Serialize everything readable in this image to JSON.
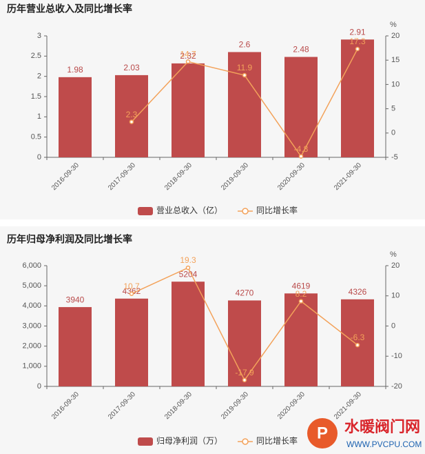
{
  "chart_data": [
    {
      "type": "bar-line",
      "title": "历年营业总收入及同比增长率",
      "categories": [
        "2016-09-30",
        "2017-09-30",
        "2018-09-30",
        "2019-09-30",
        "2020-09-30",
        "2021-09-30"
      ],
      "series": [
        {
          "name": "营业总收入（亿）",
          "color": "#bf4b4b",
          "type": "bar",
          "values": [
            1.98,
            2.03,
            2.32,
            2.6,
            2.48,
            2.91
          ]
        },
        {
          "name": "同比增长率",
          "color": "#f3a25a",
          "type": "line",
          "axis": "y2",
          "values": [
            null,
            2.3,
            14.7,
            11.9,
            -4.8,
            17.3
          ]
        }
      ],
      "ylim": [
        0,
        3
      ],
      "yticks": [
        0,
        0.5,
        1,
        1.5,
        2,
        2.5,
        3
      ],
      "y2label": "%",
      "y2lim": [
        -5,
        20
      ],
      "y2ticks": [
        -5,
        0,
        5,
        10,
        15,
        20
      ]
    },
    {
      "type": "bar-line",
      "title": "历年归母净利润及同比增长率",
      "categories": [
        "2016-09-30",
        "2017-09-30",
        "2018-09-30",
        "2019-09-30",
        "2020-09-30",
        "2021-09-30"
      ],
      "series": [
        {
          "name": "归母净利润（万）",
          "color": "#bf4b4b",
          "type": "bar",
          "values": [
            3940,
            4362,
            5204,
            4270,
            4619,
            4326
          ]
        },
        {
          "name": "同比增长率",
          "color": "#f3a25a",
          "type": "line",
          "axis": "y2",
          "values": [
            null,
            10.7,
            19.3,
            -17.9,
            8.2,
            -6.3
          ]
        }
      ],
      "ylim": [
        0,
        6000
      ],
      "yticks": [
        0,
        {
          "value": 1000,
          "label": "1,000"
        },
        {
          "value": 2000,
          "label": "2,000"
        },
        {
          "value": 3000,
          "label": "3,000"
        },
        {
          "value": 4000,
          "label": "4,000"
        },
        {
          "value": 5000,
          "label": "5,000"
        },
        {
          "value": 6000,
          "label": "6,000"
        }
      ],
      "y2label": "%",
      "y2lim": [
        -20,
        20
      ],
      "y2ticks": [
        -20,
        -10,
        0,
        10,
        20
      ]
    }
  ],
  "watermark": {
    "name": "水暖阀门网",
    "url": "WWW.PVCPU.COM"
  }
}
